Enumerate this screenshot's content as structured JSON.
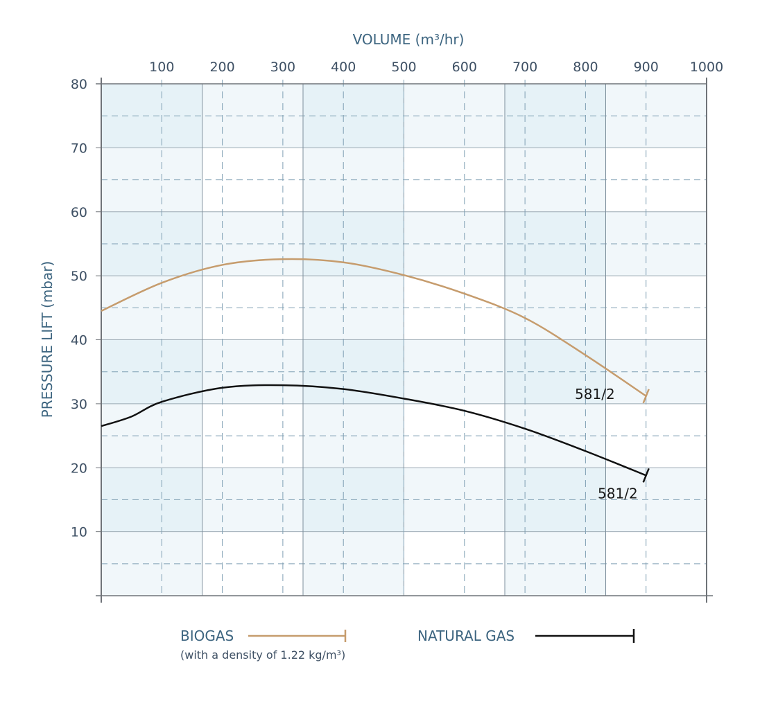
{
  "chart_data": {
    "type": "line",
    "xlabel": "VOLUME (m³/hr)",
    "ylabel": "PRESSURE LIFT (mbar)",
    "xlim": [
      0,
      1000
    ],
    "ylim": [
      0,
      80
    ],
    "x_ticks": [
      100,
      200,
      300,
      400,
      500,
      600,
      700,
      800,
      900,
      1000
    ],
    "y_ticks": [
      10,
      20,
      30,
      40,
      50,
      60,
      70,
      80
    ],
    "x_axis_position": "top",
    "grid": true,
    "legend_placement": "bottom",
    "series": [
      {
        "name": "BIOGAS",
        "note": "(with a density of 1.22 kg/m³)",
        "label": "581/2",
        "color": "#c69c6d",
        "x": [
          0,
          100,
          200,
          300,
          400,
          500,
          600,
          700,
          800,
          900
        ],
        "y": [
          44.5,
          48.9,
          51.7,
          52.6,
          52.1,
          50.1,
          47.2,
          43.4,
          37.6,
          31.2
        ]
      },
      {
        "name": "NATURAL GAS",
        "label": "581/2",
        "color": "#111111",
        "x": [
          0,
          50,
          100,
          200,
          300,
          400,
          500,
          600,
          700,
          800,
          900
        ],
        "y": [
          26.5,
          28.0,
          30.3,
          32.5,
          32.9,
          32.3,
          30.8,
          28.9,
          26.1,
          22.6,
          18.8
        ]
      }
    ],
    "colors": {
      "band_dark": "#e6f2f7",
      "band_light": "#f1f7fa",
      "grid_solid": "#7d8f9c",
      "grid_dashed": "#7f9fb3",
      "axis": "#6f7378"
    }
  }
}
